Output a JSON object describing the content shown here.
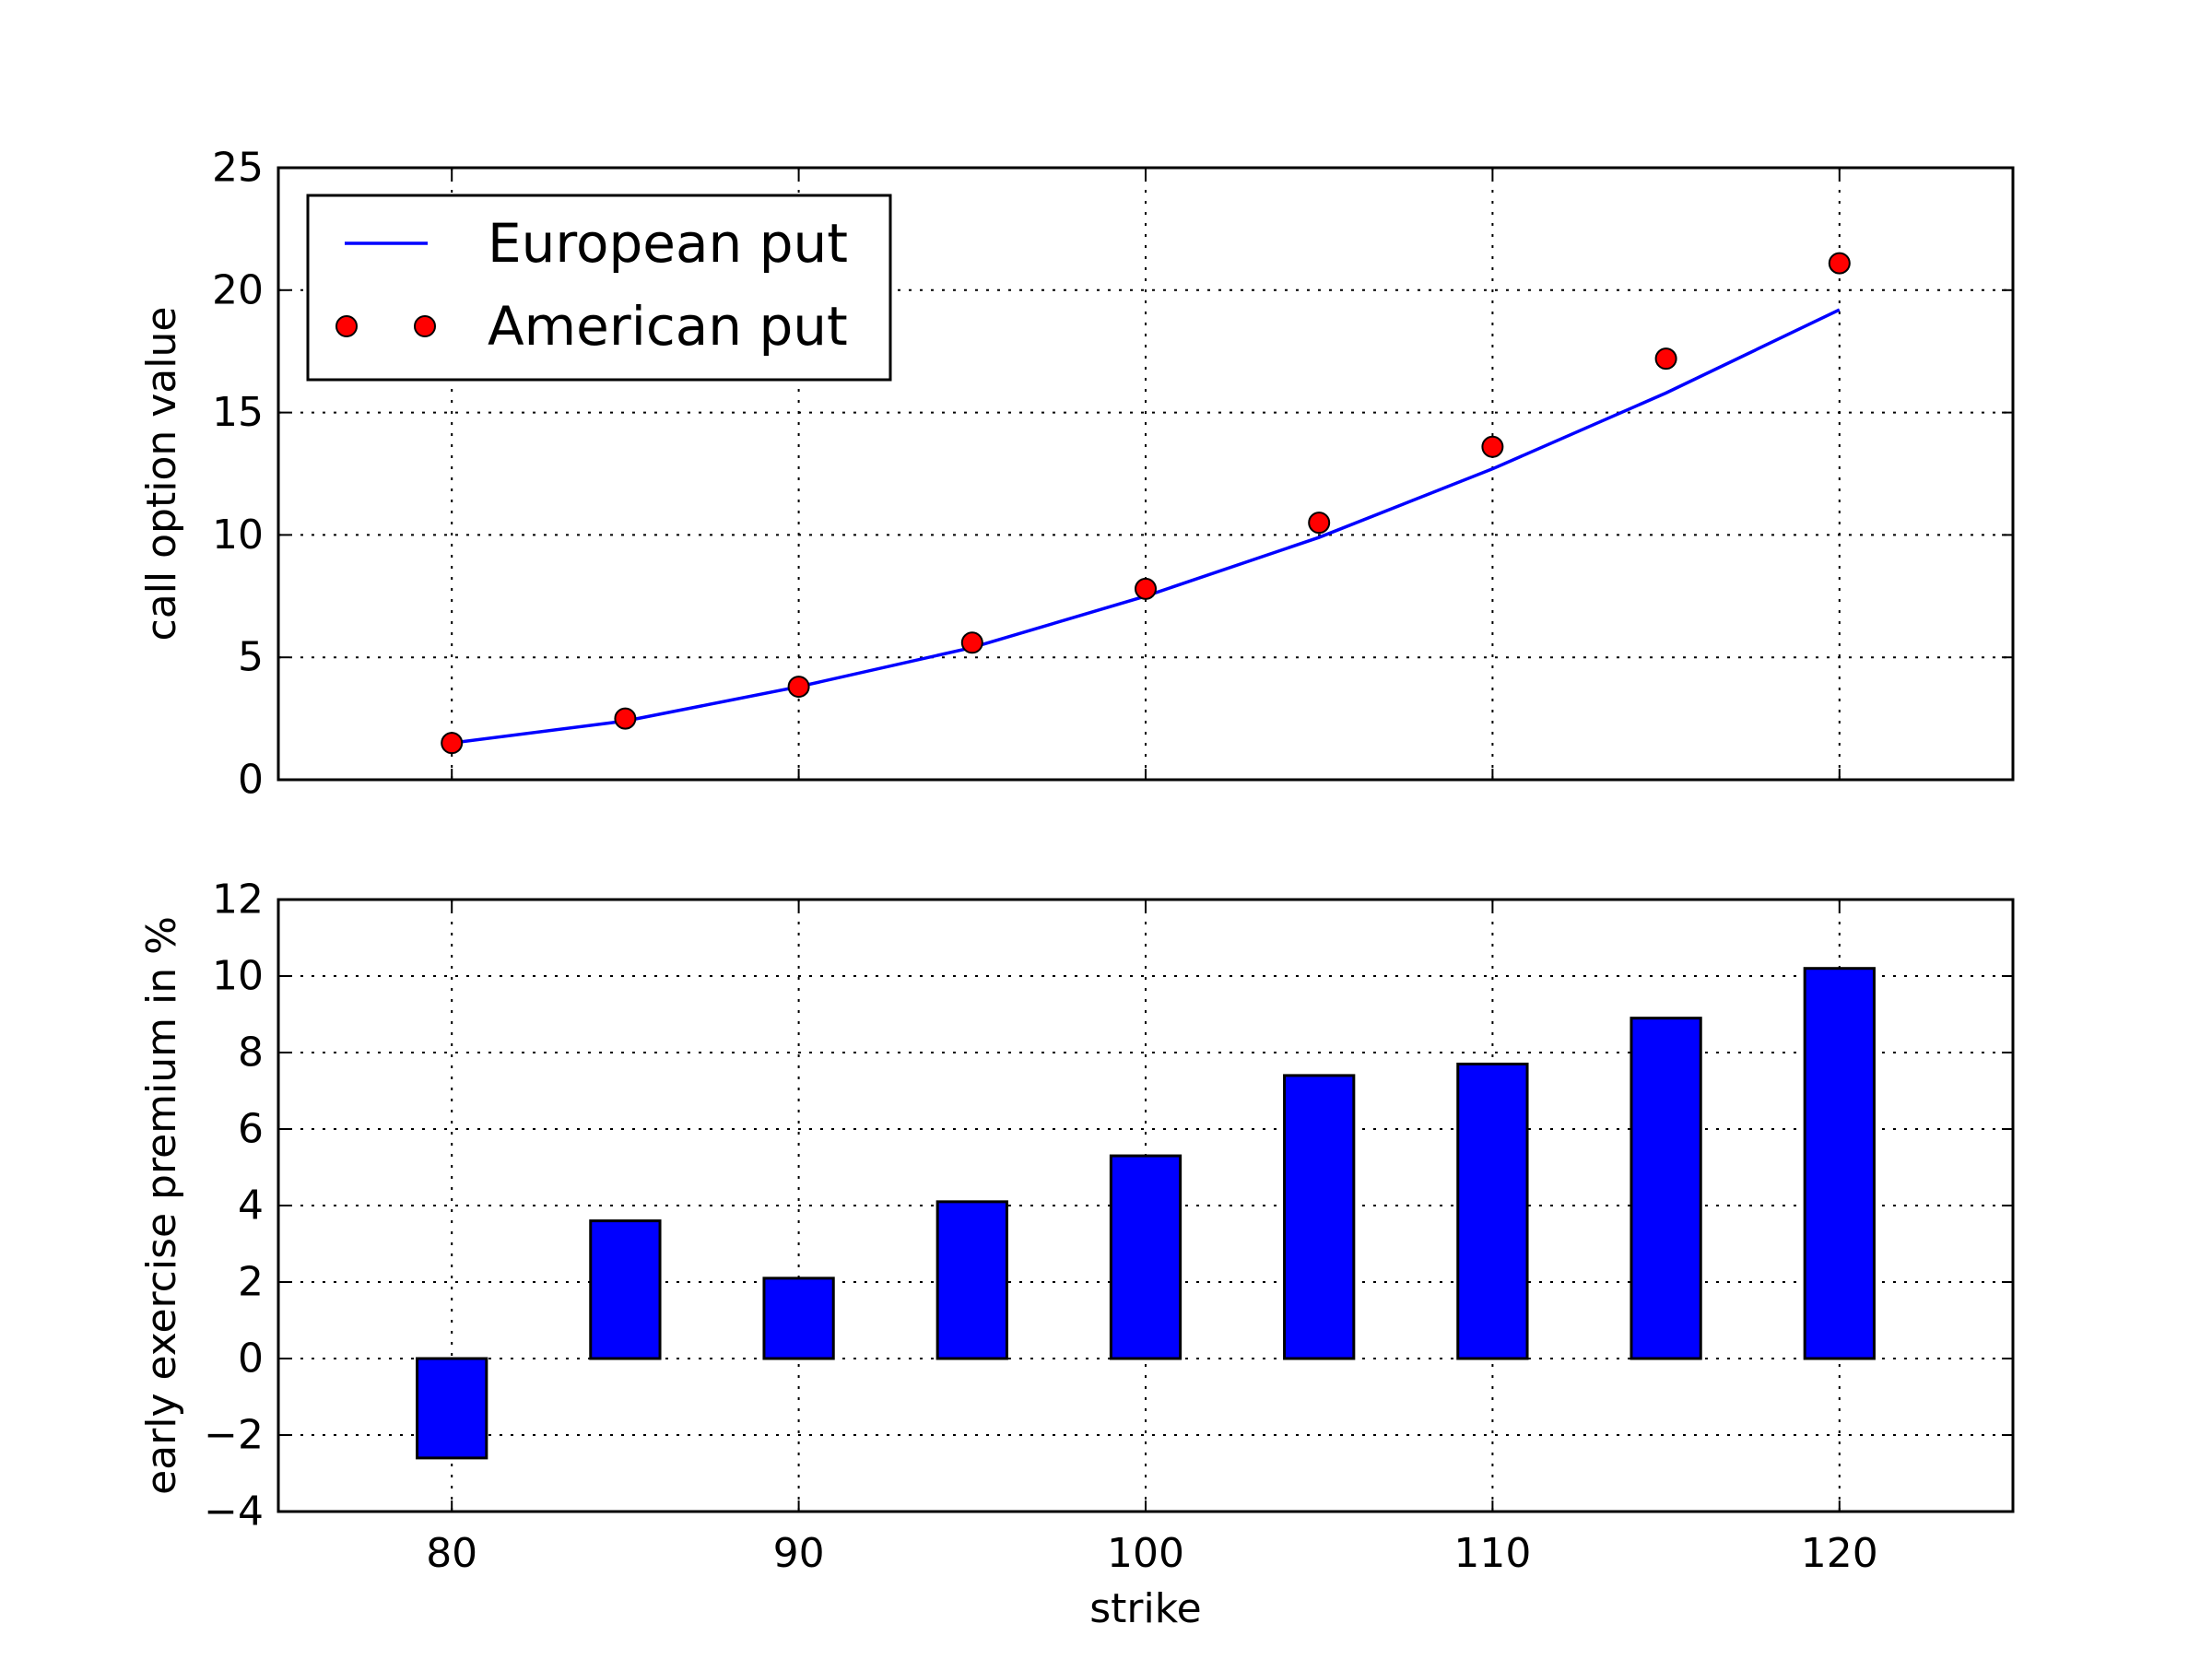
{
  "chart_data": [
    {
      "type": "line",
      "title": "",
      "xlabel": "",
      "ylabel": "call option value",
      "xlim": [
        75,
        125
      ],
      "ylim": [
        0,
        25
      ],
      "xticks": [
        80,
        90,
        100,
        110,
        120
      ],
      "yticks": [
        0,
        5,
        10,
        15,
        20,
        25
      ],
      "grid": true,
      "legend_position": "top-left",
      "x": [
        80,
        85,
        90,
        95,
        100,
        105,
        110,
        115,
        120
      ],
      "series": [
        {
          "name": "European put",
          "style": "line",
          "color": "#0000ff",
          "values": [
            1.5,
            2.4,
            3.8,
            5.4,
            7.5,
            9.9,
            12.7,
            15.8,
            19.2
          ]
        },
        {
          "name": "American put",
          "style": "markers",
          "color": "#ff0000",
          "values": [
            1.5,
            2.5,
            3.8,
            5.6,
            7.8,
            10.5,
            13.6,
            17.2,
            21.1
          ]
        }
      ]
    },
    {
      "type": "bar",
      "title": "",
      "xlabel": "strike",
      "ylabel": "early exercise premium in %",
      "xlim": [
        75,
        125
      ],
      "ylim": [
        -4,
        12
      ],
      "xticks": [
        80,
        90,
        100,
        110,
        120
      ],
      "yticks": [
        -4,
        -2,
        0,
        2,
        4,
        6,
        8,
        10,
        12
      ],
      "grid": true,
      "color": "#0000ff",
      "x": [
        80,
        85,
        90,
        95,
        100,
        105,
        110,
        115,
        120
      ],
      "values": [
        -2.6,
        3.6,
        2.1,
        4.1,
        5.3,
        7.4,
        7.7,
        8.9,
        10.2
      ]
    }
  ]
}
